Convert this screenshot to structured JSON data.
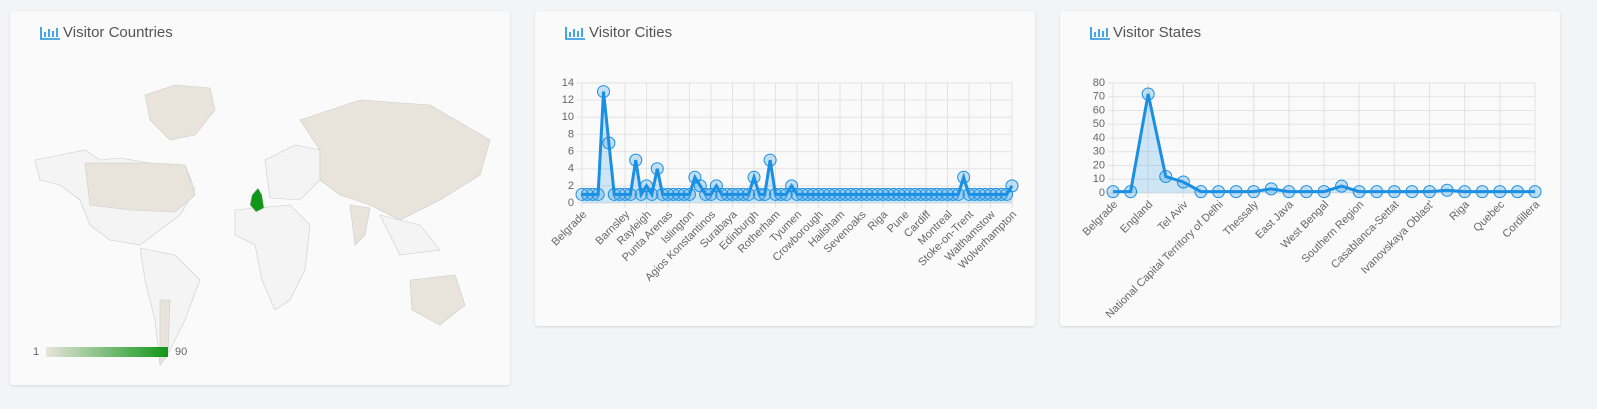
{
  "map": {
    "title": "Visitor Countries",
    "legend": {
      "min": 1,
      "max": 90,
      "low_color": "#e8e4dc",
      "high_color": "#109618"
    }
  },
  "chart_data": [
    {
      "type": "line",
      "title": "Visitor Cities",
      "color": "#1a8fe3",
      "categories": [
        "Belgrade",
        null,
        null,
        null,
        null,
        null,
        null,
        null,
        "Barnsley",
        null,
        null,
        null,
        "Rayleigh",
        null,
        null,
        null,
        "Punta Arenas",
        null,
        null,
        null,
        "Islington",
        null,
        null,
        null,
        "Agios Konstantinos",
        null,
        null,
        null,
        "Surabaya",
        null,
        null,
        null,
        "Edinburgh",
        null,
        null,
        null,
        "Rotherham",
        null,
        null,
        null,
        "Tyumen",
        null,
        null,
        null,
        "Crowborough",
        null,
        null,
        null,
        "Hailsham",
        null,
        null,
        null,
        "Sevenoaks",
        null,
        null,
        null,
        "Riga",
        null,
        null,
        null,
        "Pune",
        null,
        null,
        null,
        "Cardiff",
        null,
        null,
        null,
        "Montreal",
        null,
        null,
        null,
        "Stoke-on-Trent",
        null,
        null,
        null,
        "Walthamstow",
        null,
        null,
        null,
        "Wolverhampton"
      ],
      "values": [
        1,
        1,
        1,
        1,
        13,
        7,
        1,
        1,
        1,
        1,
        5,
        1,
        2,
        1,
        4,
        1,
        1,
        1,
        1,
        1,
        1,
        3,
        2,
        1,
        1,
        2,
        1,
        1,
        1,
        1,
        1,
        1,
        3,
        1,
        1,
        5,
        1,
        1,
        1,
        2,
        1,
        1,
        1,
        1,
        1,
        1,
        1,
        1,
        1,
        1,
        1,
        1,
        1,
        1,
        1,
        1,
        1,
        1,
        1,
        1,
        1,
        1,
        1,
        1,
        1,
        1,
        1,
        1,
        1,
        1,
        1,
        3,
        1,
        1,
        1,
        1,
        1,
        1,
        1,
        1,
        2
      ],
      "ylim": [
        0,
        14
      ],
      "yticks": [
        0,
        2,
        4,
        6,
        8,
        10,
        12,
        14
      ],
      "grid": true
    },
    {
      "type": "line",
      "title": "Visitor States",
      "color": "#1a8fe3",
      "categories": [
        "Belgrade",
        null,
        "England",
        null,
        "Tel Aviv",
        null,
        "National Capital Territory of Delhi",
        null,
        "Thessaly",
        null,
        "East Java",
        null,
        "West Bengal",
        null,
        "Southern Region",
        null,
        "Casablanca-Settat",
        null,
        "Ivanovskaya Oblast'",
        null,
        "Riga",
        null,
        "Quebec",
        null,
        "Cordillera"
      ],
      "values": [
        1,
        1,
        72,
        12,
        8,
        1,
        1,
        1,
        1,
        3,
        1,
        1,
        1,
        5,
        1,
        1,
        1,
        1,
        1,
        2,
        1,
        1,
        1,
        1,
        1
      ],
      "ylim": [
        0,
        80
      ],
      "yticks": [
        0,
        10,
        20,
        30,
        40,
        50,
        60,
        70,
        80
      ],
      "grid": true
    }
  ]
}
